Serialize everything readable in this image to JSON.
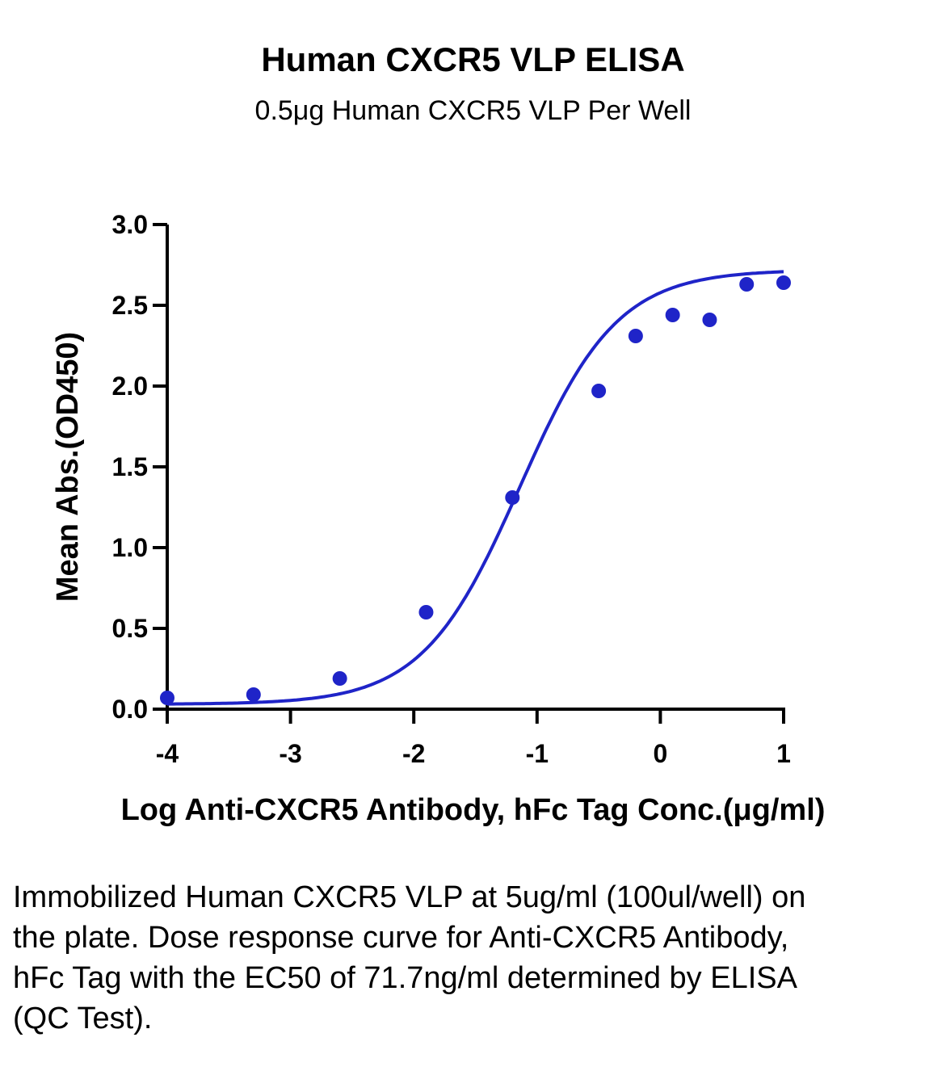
{
  "chart_data": {
    "type": "scatter",
    "title": "Human CXCR5 VLP ELISA",
    "subtitle": "0.5μg Human CXCR5 VLP Per Well",
    "xlabel": "Log Anti-CXCR5 Antibody, hFc Tag Conc.(μg/ml)",
    "ylabel": "Mean Abs.(OD450)",
    "xlim": [
      -4,
      1
    ],
    "ylim": [
      0,
      3.0
    ],
    "x_ticks": [
      "-4",
      "-3",
      "-2",
      "-1",
      "0",
      "1"
    ],
    "y_ticks": [
      "0.0",
      "0.5",
      "1.0",
      "1.5",
      "2.0",
      "2.5",
      "3.0"
    ],
    "grid": false,
    "color": "#1f24c8",
    "series": [
      {
        "x": [
          -4.0,
          -3.3,
          -2.6,
          -1.9,
          -1.2,
          -0.5,
          -0.2,
          0.1,
          0.4,
          0.7,
          1.0
        ],
        "y": [
          0.07,
          0.09,
          0.19,
          0.6,
          1.31,
          1.97,
          2.31,
          2.44,
          2.41,
          2.63,
          2.64
        ],
        "fit": "four-parameter logistic"
      }
    ]
  },
  "caption": "Immobilized Human CXCR5 VLP at 5ug/ml (100ul/well) on the plate. Dose response curve for Anti-CXCR5 Antibody, hFc Tag with the EC50 of 71.7ng/ml determined by ELISA (QC Test)."
}
